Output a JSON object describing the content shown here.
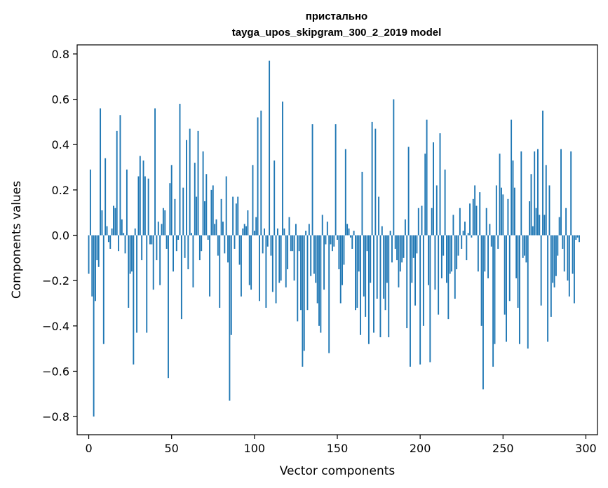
{
  "chart_data": {
    "type": "bar",
    "title": "пристально",
    "subtitle": "tayga_upos_skipgram_300_2_2019 model",
    "xlabel": "Vector components",
    "ylabel": "Components values",
    "xlim": [
      -7,
      307
    ],
    "ylim": [
      -0.88,
      0.84
    ],
    "x_ticks": [
      0,
      50,
      100,
      150,
      200,
      250,
      300
    ],
    "x_tick_labels": [
      "0",
      "50",
      "100",
      "150",
      "200",
      "250",
      "300"
    ],
    "y_ticks": [
      -0.8,
      -0.6,
      -0.4,
      -0.2,
      0.0,
      0.2,
      0.4,
      0.6,
      0.8
    ],
    "y_tick_labels": [
      "−0.8",
      "−0.6",
      "−0.4",
      "−0.2",
      "0.0",
      "0.2",
      "0.4",
      "0.6",
      "0.8"
    ],
    "bar_color": "#1f77b4",
    "grid": false,
    "values": [
      -0.17,
      0.29,
      -0.27,
      -0.8,
      -0.29,
      -0.11,
      -0.14,
      0.56,
      0.11,
      -0.48,
      0.34,
      0.04,
      -0.03,
      -0.06,
      0.03,
      0.13,
      0.12,
      0.46,
      -0.07,
      0.53,
      0.07,
      0.01,
      -0.08,
      0.29,
      -0.32,
      -0.17,
      -0.16,
      -0.57,
      0.03,
      -0.43,
      0.26,
      0.35,
      -0.11,
      0.33,
      0.26,
      -0.43,
      0.25,
      -0.04,
      -0.04,
      -0.24,
      0.56,
      -0.11,
      0.06,
      -0.22,
      0.05,
      0.12,
      0.11,
      -0.06,
      -0.63,
      0.23,
      0.31,
      -0.16,
      0.16,
      -0.07,
      -0.02,
      0.58,
      -0.37,
      0.21,
      -0.1,
      0.42,
      -0.15,
      0.47,
      0.01,
      -0.23,
      0.32,
      0.17,
      0.46,
      -0.11,
      -0.07,
      0.37,
      0.15,
      0.27,
      -0.02,
      -0.27,
      0.2,
      0.22,
      0.05,
      0.07,
      -0.09,
      -0.32,
      0.16,
      0.06,
      -0.08,
      0.26,
      -0.12,
      -0.73,
      -0.44,
      0.17,
      -0.06,
      0.14,
      0.17,
      -0.13,
      -0.27,
      0.03,
      0.05,
      0.04,
      0.11,
      -0.22,
      -0.24,
      0.31,
      0.02,
      0.08,
      0.52,
      -0.29,
      0.55,
      -0.08,
      0.03,
      -0.32,
      -0.05,
      0.77,
      -0.09,
      -0.25,
      0.33,
      -0.3,
      0.03,
      -0.21,
      -0.2,
      0.59,
      0.03,
      -0.23,
      -0.15,
      0.08,
      -0.07,
      -0.07,
      -0.2,
      0.05,
      -0.38,
      -0.07,
      -0.33,
      -0.58,
      -0.51,
      0.02,
      -0.33,
      0.05,
      -0.18,
      0.49,
      -0.17,
      -0.21,
      -0.3,
      -0.4,
      -0.43,
      0.09,
      -0.24,
      -0.04,
      0.06,
      -0.52,
      -0.04,
      -0.07,
      -0.05,
      0.49,
      -0.02,
      -0.15,
      -0.3,
      -0.22,
      -0.13,
      0.38,
      0.05,
      0.03,
      -0.01,
      -0.06,
      0.02,
      -0.33,
      -0.32,
      -0.16,
      -0.44,
      0.28,
      -0.27,
      -0.36,
      -0.07,
      -0.48,
      -0.21,
      0.5,
      -0.43,
      0.47,
      -0.28,
      0.17,
      -0.45,
      0.04,
      -0.28,
      -0.33,
      -0.21,
      -0.45,
      0.02,
      -0.12,
      0.6,
      -0.06,
      -0.11,
      -0.23,
      -0.16,
      -0.12,
      -0.1,
      0.07,
      -0.41,
      0.39,
      -0.58,
      -0.21,
      -0.1,
      -0.31,
      -0.08,
      0.12,
      -0.57,
      0.13,
      -0.4,
      0.36,
      0.51,
      -0.22,
      -0.56,
      0.12,
      0.41,
      -0.24,
      0.22,
      -0.35,
      0.45,
      -0.19,
      -0.09,
      0.29,
      -0.21,
      -0.37,
      -0.17,
      -0.16,
      0.09,
      -0.28,
      -0.15,
      -0.09,
      0.12,
      -0.06,
      0.02,
      0.06,
      -0.11,
      0.01,
      0.14,
      -0.01,
      0.16,
      0.22,
      0.13,
      -0.16,
      0.19,
      -0.4,
      -0.68,
      -0.16,
      0.12,
      -0.19,
      0.05,
      -0.05,
      -0.58,
      -0.48,
      0.22,
      -0.06,
      0.36,
      0.21,
      0.18,
      -0.35,
      -0.47,
      0.16,
      -0.29,
      0.51,
      0.33,
      0.21,
      -0.19,
      -0.32,
      -0.48,
      0.37,
      -0.1,
      -0.09,
      -0.12,
      -0.5,
      0.15,
      0.27,
      0.04,
      0.37,
      0.12,
      0.38,
      0.09,
      -0.31,
      0.55,
      0.09,
      0.31,
      -0.47,
      0.22,
      -0.36,
      -0.21,
      -0.23,
      -0.18,
      -0.09,
      0.08,
      0.38,
      -0.06,
      -0.16,
      0.12,
      -0.2,
      -0.27,
      0.37,
      -0.17,
      -0.3,
      -0.02,
      -0.01,
      -0.03
    ]
  }
}
